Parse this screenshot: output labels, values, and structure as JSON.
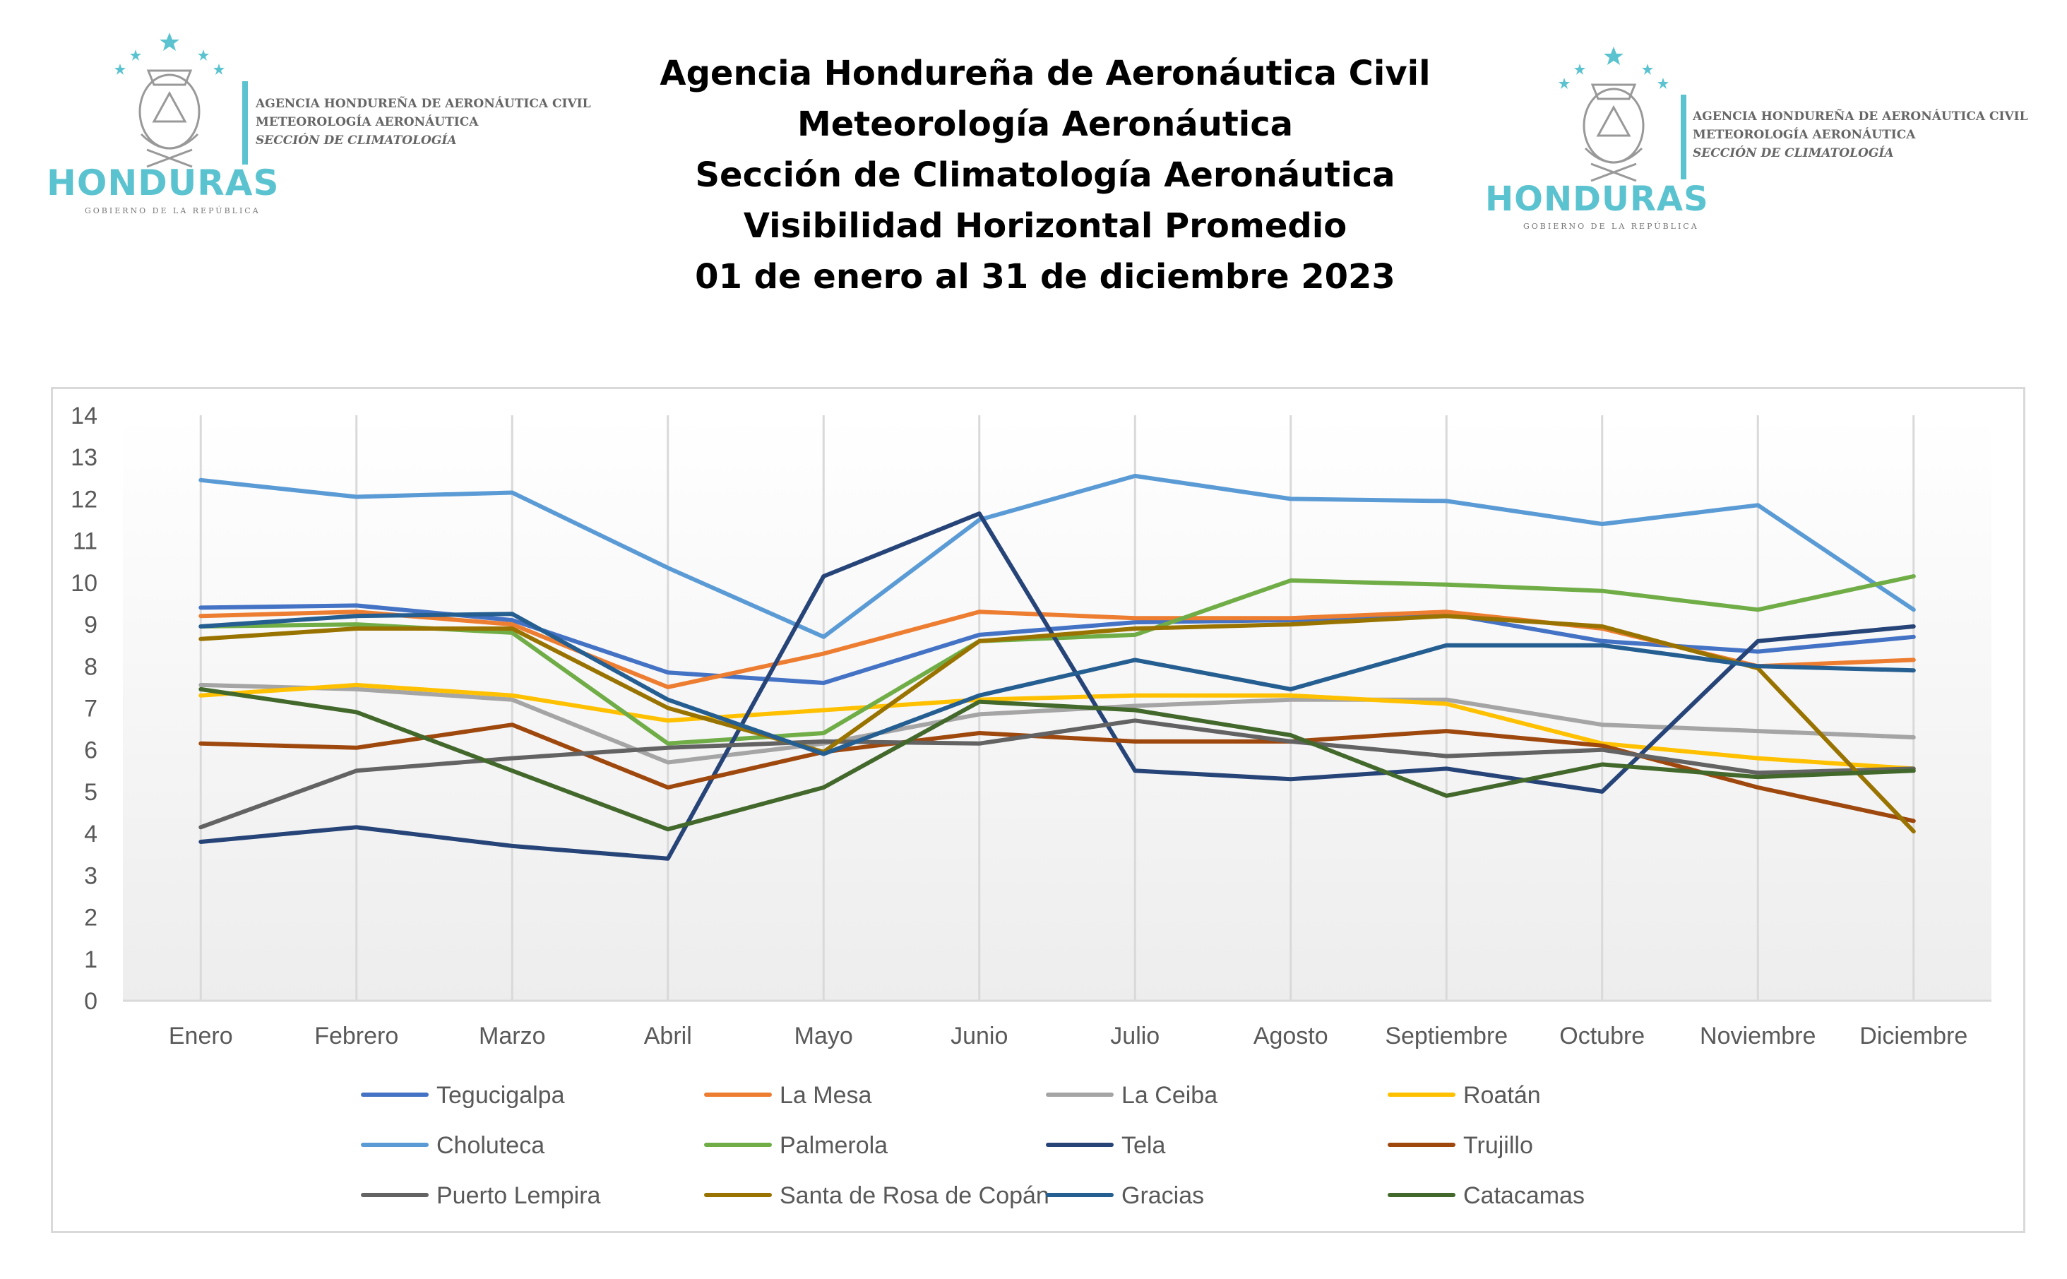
{
  "header": {
    "title_lines": [
      "Agencia Hondureña de Aeronáutica Civil",
      "Meteorología Aeronáutica",
      "Sección de Climatología Aeronáutica",
      "Visibilidad Horizontal Promedio",
      "01 de enero al 31 de diciembre 2023"
    ]
  },
  "logos": [
    {
      "wordmark": "HONDURAS",
      "subtitle": "GOBIERNO DE LA REPÚBLICA",
      "agency_lines": [
        "AGENCIA HONDUREÑA DE AERONÁUTICA CIVIL",
        "METEOROLOGÍA AERONÁUTICA",
        "SECCIÓN DE CLIMATOLOGÍA"
      ]
    },
    {
      "wordmark": "HONDURAS",
      "subtitle": "GOBIERNO DE LA REPÚBLICA",
      "agency_lines": [
        "AGENCIA HONDUREÑA DE AERONÁUTICA CIVIL",
        "METEOROLOGÍA AERONÁUTICA",
        "SECCIÓN DE CLIMATOLOGÍA"
      ]
    }
  ],
  "colors": {
    "brand": "#5bc3d0",
    "gridline": "#d9d9d9",
    "frame": "#d9d9d9"
  },
  "chart_data": {
    "type": "line",
    "title": "",
    "xlabel": "",
    "ylabel": "",
    "ylim": [
      0,
      14
    ],
    "yticks": [
      "0",
      "1",
      "2",
      "3",
      "4",
      "5",
      "6",
      "7",
      "8",
      "9",
      "10",
      "11",
      "12",
      "13",
      "14"
    ],
    "grid": "vertical",
    "legend_position": "bottom",
    "categories": [
      "Enero",
      "Febrero",
      "Marzo",
      "Abril",
      "Mayo",
      "Junio",
      "Julio",
      "Agosto",
      "Septiembre",
      "Octubre",
      "Noviembre",
      "Diciembre"
    ],
    "series": [
      {
        "name": "Tegucigalpa",
        "color": "#4472c4",
        "values": [
          9.4,
          9.45,
          9.1,
          7.85,
          7.6,
          8.75,
          9.05,
          9.1,
          9.25,
          8.6,
          8.35,
          8.7
        ]
      },
      {
        "name": "La Mesa",
        "color": "#ed7d31",
        "values": [
          9.2,
          9.3,
          9.0,
          7.5,
          8.3,
          9.3,
          9.15,
          9.15,
          9.3,
          8.9,
          8.0,
          8.15
        ]
      },
      {
        "name": "La Ceiba",
        "color": "#a5a5a5",
        "values": [
          7.55,
          7.45,
          7.2,
          5.7,
          6.15,
          6.85,
          7.05,
          7.2,
          7.2,
          6.6,
          6.45,
          6.3
        ]
      },
      {
        "name": "Roatán",
        "color": "#ffc000",
        "values": [
          7.3,
          7.55,
          7.3,
          6.7,
          6.95,
          7.2,
          7.3,
          7.3,
          7.1,
          6.15,
          5.8,
          5.55
        ]
      },
      {
        "name": "Choluteca",
        "color": "#5b9bd5",
        "values": [
          12.45,
          12.05,
          12.15,
          10.35,
          8.7,
          11.5,
          12.55,
          12.0,
          11.95,
          11.4,
          11.85,
          9.35
        ]
      },
      {
        "name": "Palmerola",
        "color": "#70ad47",
        "values": [
          8.95,
          9.0,
          8.8,
          6.15,
          6.4,
          8.6,
          8.75,
          10.05,
          9.95,
          9.8,
          9.35,
          10.15
        ]
      },
      {
        "name": "Tela",
        "color": "#264478",
        "values": [
          3.8,
          4.15,
          3.7,
          3.4,
          10.15,
          11.65,
          5.5,
          5.3,
          5.55,
          5.0,
          8.6,
          8.95
        ]
      },
      {
        "name": "Trujillo",
        "color": "#9e480e",
        "values": [
          6.15,
          6.05,
          6.6,
          5.1,
          5.95,
          6.4,
          6.2,
          6.2,
          6.45,
          6.1,
          5.1,
          4.3
        ]
      },
      {
        "name": "Puerto Lempira",
        "color": "#636363",
        "values": [
          4.15,
          5.5,
          5.8,
          6.05,
          6.2,
          6.15,
          6.7,
          6.2,
          5.85,
          6.0,
          5.45,
          5.55
        ]
      },
      {
        "name": "Santa de Rosa de Copán",
        "color": "#997300",
        "values": [
          8.65,
          8.9,
          8.9,
          7.0,
          5.95,
          8.6,
          8.9,
          9.0,
          9.2,
          8.95,
          7.95,
          4.05
        ]
      },
      {
        "name": "Gracias",
        "color": "#255e91",
        "values": [
          8.95,
          9.2,
          9.25,
          7.2,
          5.9,
          7.3,
          8.15,
          7.45,
          8.5,
          8.5,
          8.0,
          7.9
        ]
      },
      {
        "name": "Catacamas",
        "color": "#43682b",
        "values": [
          7.45,
          6.9,
          5.5,
          4.1,
          5.1,
          7.15,
          6.95,
          6.35,
          4.9,
          5.65,
          5.35,
          5.5
        ]
      }
    ]
  }
}
